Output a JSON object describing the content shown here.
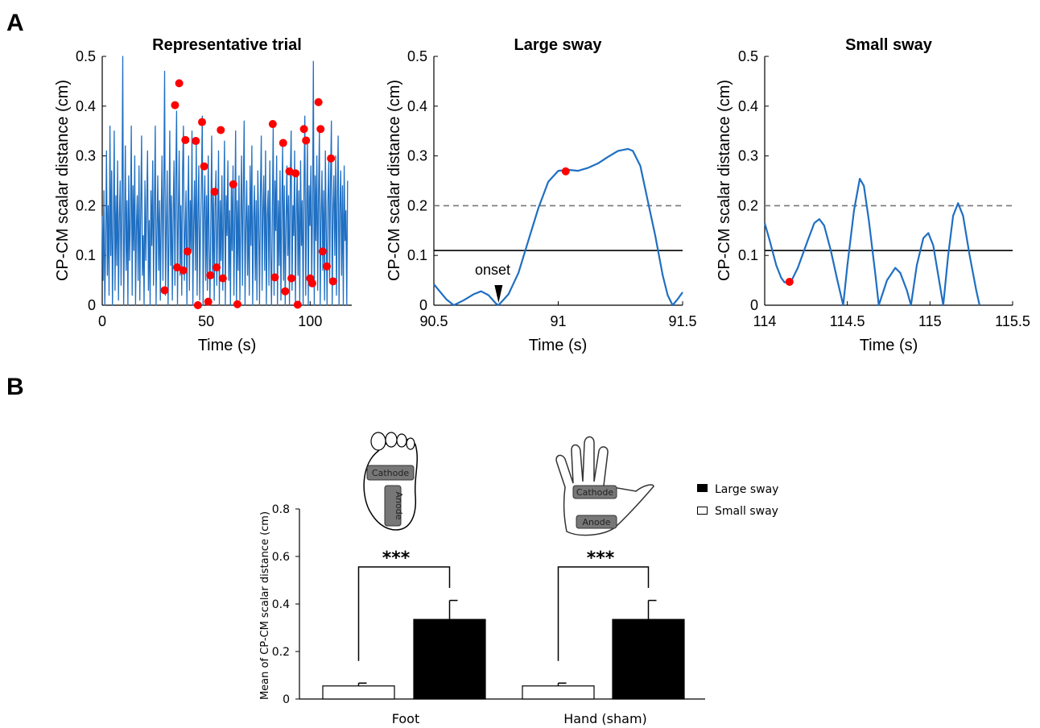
{
  "panels": {
    "a": "A",
    "b": "B"
  },
  "colors": {
    "trace": "#1f6fc2",
    "marker": "#ff0000",
    "threshold": "#000000",
    "dashed": "#777777",
    "large_bar": "#000000",
    "small_bar": "#ffffff"
  },
  "chart_data": [
    {
      "type": "line",
      "title": "Representative trial",
      "xlabel": "Time (s)",
      "ylabel": "CP-CM scalar distance (cm)",
      "xlim": [
        0,
        120
      ],
      "ylim": [
        0,
        0.5
      ],
      "xticks": [
        "0",
        "50",
        "100"
      ],
      "yticks": [
        "0",
        "0.1",
        "0.2",
        "0.3",
        "0.4",
        "0.5"
      ],
      "series": [
        {
          "values": [
            0.18,
            0.05,
            0.23,
            0.0,
            0.12,
            0.31,
            0.06,
            0.2,
            0.02,
            0.36,
            0.1,
            0.27,
            0.0,
            0.15,
            0.35,
            0.03,
            0.22,
            0.08,
            0.29,
            0.01,
            0.17,
            0.25,
            0.04,
            0.19,
            0.5,
            0.0,
            0.13,
            0.32,
            0.07,
            0.21,
            0.0,
            0.26,
            0.09,
            0.18,
            0.36,
            0.02,
            0.24,
            0.11,
            0.3,
            0.0,
            0.16,
            0.22,
            0.05,
            0.28,
            0.01,
            0.19,
            0.34,
            0.06,
            0.14,
            0.0,
            0.25,
            0.09,
            0.2,
            0.31,
            0.03,
            0.17,
            0.0,
            0.23,
            0.12,
            0.29,
            0.04,
            0.2,
            0.36,
            0.0,
            0.15,
            0.26,
            0.07,
            0.21,
            0.01,
            0.18,
            0.3,
            0.05,
            0.24,
            0.47,
            0.02,
            0.16,
            0.27,
            0.0,
            0.13,
            0.35,
            0.08,
            0.22,
            0.01,
            0.19,
            0.29,
            0.04,
            0.25,
            0.39,
            0.0,
            0.17,
            0.31,
            0.06,
            0.2,
            0.02,
            0.27,
            0.36,
            0.05,
            0.14,
            0.23,
            0.0,
            0.18,
            0.3,
            0.03,
            0.21,
            0.11,
            0.35,
            0.0,
            0.16,
            0.25,
            0.07,
            0.33,
            0.02,
            0.2,
            0.28,
            0.01,
            0.15,
            0.24,
            0.38,
            0.0,
            0.19,
            0.26,
            0.05,
            0.22,
            0.03,
            0.3,
            0.12,
            0.0,
            0.17,
            0.34,
            0.06,
            0.23,
            0.01,
            0.2,
            0.27,
            0.04,
            0.16,
            0.31,
            0.0,
            0.21,
            0.09,
            0.26,
            0.03,
            0.18,
            0.33,
            0.0,
            0.22,
            0.14,
            0.29,
            0.05,
            0.19,
            0.0,
            0.24,
            0.11,
            0.28,
            0.02,
            0.16,
            0.35,
            0.0,
            0.21,
            0.07,
            0.26,
            0.01,
            0.18,
            0.3,
            0.04,
            0.23,
            0.37,
            0.0,
            0.15,
            0.25,
            0.06,
            0.2,
            0.02,
            0.28,
            0.12,
            0.32,
            0.0,
            0.17,
            0.24,
            0.05,
            0.21,
            0.01,
            0.27,
            0.16,
            0.0,
            0.22,
            0.34,
            0.03,
            0.19,
            0.26,
            0.07,
            0.31,
            0.0,
            0.18,
            0.23,
            0.04,
            0.29,
            0.11,
            0.0,
            0.2,
            0.36,
            0.02,
            0.25,
            0.15,
            0.3,
            0.0,
            0.21,
            0.08,
            0.27,
            0.01,
            0.19,
            0.32,
            0.05,
            0.24,
            0.0,
            0.17,
            0.28,
            0.1,
            0.22,
            0.0,
            0.26,
            0.35,
            0.03,
            0.2,
            0.14,
            0.31,
            0.0,
            0.18,
            0.27,
            0.06,
            0.23,
            0.0,
            0.29,
            0.12,
            0.21,
            0.0,
            0.25,
            0.38,
            0.02,
            0.19,
            0.33,
            0.0,
            0.24,
            0.16,
            0.28,
            0.04,
            0.2,
            0.49,
            0.0,
            0.26,
            0.13,
            0.3,
            0.03,
            0.22,
            0.35,
            0.0,
            0.18,
            0.27,
            0.07,
            0.23,
            0.01,
            0.31,
            0.15,
            0.0,
            0.21,
            0.29,
            0.05,
            0.25,
            0.37,
            0.0,
            0.19,
            0.26,
            0.1,
            0.3,
            0.02,
            0.22,
            0.34,
            0.0,
            0.2,
            0.27,
            0.06,
            0.24,
            0.0,
            0.28,
            0.13,
            0.19,
            0.0,
            0.25
          ]
        },
        {
          "name": "peaks",
          "points": [
            [
              30,
              0.03
            ],
            [
              35,
              0.402
            ],
            [
              36,
              0.076
            ],
            [
              37,
              0.446
            ],
            [
              39,
              0.07
            ],
            [
              40,
              0.332
            ],
            [
              41,
              0.108
            ],
            [
              45,
              0.33
            ],
            [
              46,
              0.0
            ],
            [
              48,
              0.368
            ],
            [
              49,
              0.279
            ],
            [
              51,
              0.007
            ],
            [
              52,
              0.06
            ],
            [
              54,
              0.228
            ],
            [
              55,
              0.076
            ],
            [
              57,
              0.352
            ],
            [
              58,
              0.054
            ],
            [
              63,
              0.243
            ],
            [
              65,
              0.002
            ],
            [
              82,
              0.364
            ],
            [
              83,
              0.056
            ],
            [
              87,
              0.326
            ],
            [
              88,
              0.028
            ],
            [
              90,
              0.269
            ],
            [
              91,
              0.054
            ],
            [
              93,
              0.265
            ],
            [
              94,
              0.001
            ],
            [
              97,
              0.354
            ],
            [
              98,
              0.331
            ],
            [
              100,
              0.054
            ],
            [
              101,
              0.044
            ],
            [
              104,
              0.408
            ],
            [
              105,
              0.354
            ],
            [
              106,
              0.108
            ],
            [
              108,
              0.078
            ],
            [
              110,
              0.295
            ],
            [
              111,
              0.048
            ]
          ]
        }
      ]
    },
    {
      "type": "line",
      "title": "Large sway",
      "xlabel": "Time (s)",
      "ylabel": "CP-CM scalar distance (cm)",
      "xlim": [
        90.5,
        91.5
      ],
      "ylim": [
        0,
        0.5
      ],
      "xticks": [
        "90.5",
        "91",
        "91.5"
      ],
      "yticks": [
        "0",
        "0.1",
        "0.2",
        "0.3",
        "0.4",
        "0.5"
      ],
      "thresholds": {
        "solid": 0.11,
        "dashed": 0.2
      },
      "annotation": "onset",
      "onset_x": 90.76,
      "series": [
        {
          "points": [
            [
              90.5,
              0.042
            ],
            [
              90.55,
              0.012
            ],
            [
              90.58,
              0.0
            ],
            [
              90.62,
              0.01
            ],
            [
              90.66,
              0.022
            ],
            [
              90.69,
              0.028
            ],
            [
              90.72,
              0.02
            ],
            [
              90.75,
              0.003
            ],
            [
              90.76,
              0.0
            ],
            [
              90.8,
              0.022
            ],
            [
              90.84,
              0.065
            ],
            [
              90.88,
              0.13
            ],
            [
              90.92,
              0.195
            ],
            [
              90.96,
              0.248
            ],
            [
              91.0,
              0.27
            ],
            [
              91.04,
              0.272
            ],
            [
              91.08,
              0.27
            ],
            [
              91.12,
              0.276
            ],
            [
              91.16,
              0.285
            ],
            [
              91.2,
              0.298
            ],
            [
              91.24,
              0.31
            ],
            [
              91.28,
              0.314
            ],
            [
              91.3,
              0.31
            ],
            [
              91.33,
              0.28
            ],
            [
              91.36,
              0.21
            ],
            [
              91.39,
              0.14
            ],
            [
              91.42,
              0.06
            ],
            [
              91.44,
              0.02
            ],
            [
              91.46,
              0.0
            ],
            [
              91.48,
              0.012
            ],
            [
              91.5,
              0.026
            ]
          ]
        },
        {
          "name": "peak",
          "points": [
            [
              91.03,
              0.269
            ]
          ]
        }
      ]
    },
    {
      "type": "line",
      "title": "Small sway",
      "xlabel": "Time (s)",
      "ylabel": "CP-CM scalar distance (cm)",
      "xlim": [
        114,
        115.5
      ],
      "ylim": [
        0,
        0.5
      ],
      "xticks": [
        "114",
        "114.5",
        "115",
        "115.5"
      ],
      "yticks": [
        "0",
        "0.1",
        "0.2",
        "0.3",
        "0.4",
        "0.5"
      ],
      "thresholds": {
        "solid": 0.11,
        "dashed": 0.2
      },
      "series": [
        {
          "points": [
            [
              114.0,
              0.165
            ],
            [
              114.03,
              0.13
            ],
            [
              114.07,
              0.08
            ],
            [
              114.1,
              0.055
            ],
            [
              114.12,
              0.046
            ],
            [
              114.16,
              0.048
            ],
            [
              114.2,
              0.075
            ],
            [
              114.26,
              0.13
            ],
            [
              114.3,
              0.165
            ],
            [
              114.33,
              0.173
            ],
            [
              114.36,
              0.16
            ],
            [
              114.4,
              0.11
            ],
            [
              114.44,
              0.05
            ],
            [
              114.475,
              0.0
            ],
            [
              114.5,
              0.08
            ],
            [
              114.54,
              0.19
            ],
            [
              114.575,
              0.254
            ],
            [
              114.6,
              0.24
            ],
            [
              114.63,
              0.17
            ],
            [
              114.67,
              0.06
            ],
            [
              114.69,
              0.0
            ],
            [
              114.74,
              0.05
            ],
            [
              114.79,
              0.075
            ],
            [
              114.82,
              0.065
            ],
            [
              114.86,
              0.03
            ],
            [
              114.885,
              0.0
            ],
            [
              114.92,
              0.08
            ],
            [
              114.96,
              0.135
            ],
            [
              114.99,
              0.145
            ],
            [
              115.02,
              0.12
            ],
            [
              115.05,
              0.06
            ],
            [
              115.08,
              0.0
            ],
            [
              115.11,
              0.1
            ],
            [
              115.14,
              0.18
            ],
            [
              115.17,
              0.205
            ],
            [
              115.2,
              0.18
            ],
            [
              115.24,
              0.1
            ],
            [
              115.28,
              0.03
            ],
            [
              115.3,
              0.0
            ]
          ]
        },
        {
          "name": "peak",
          "points": [
            [
              114.15,
              0.047
            ]
          ]
        }
      ]
    },
    {
      "type": "bar",
      "ylabel": "Mean of CP-CM scalar distance (cm)",
      "ylim": [
        0,
        0.8
      ],
      "yticks": [
        "0",
        "0.2",
        "0.4",
        "0.6",
        "0.8"
      ],
      "categories": [
        "Foot",
        "Hand (sham)"
      ],
      "series": [
        {
          "name": "Small sway",
          "values": [
            0.055,
            0.055
          ],
          "errors": [
            0.012,
            0.012
          ]
        },
        {
          "name": "Large sway",
          "values": [
            0.335,
            0.335
          ],
          "errors": [
            0.08,
            0.08
          ]
        }
      ],
      "significance": [
        "***",
        "***"
      ],
      "legend_position": "top-right",
      "electrodes": {
        "cathode": "Cathode",
        "anode": "Anode"
      }
    }
  ]
}
